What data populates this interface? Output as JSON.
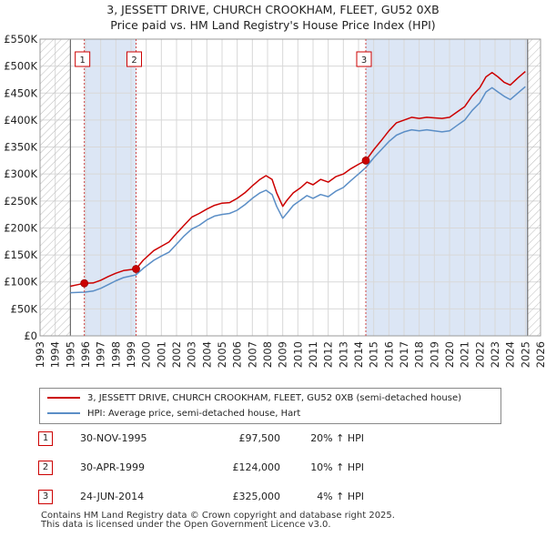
{
  "title_line1": "3, JESSETT DRIVE, CHURCH CROOKHAM, FLEET, GU52 0XB",
  "title_line2": "Price paid vs. HM Land Registry's House Price Index (HPI)",
  "colors": {
    "property": "#cc0000",
    "hpi": "#5b8ec6",
    "sale_band": "#dce6f5",
    "grid": "#d8d8d8",
    "marker_line": "#cc4444"
  },
  "chart_data": {
    "type": "line",
    "x_range": [
      1993,
      2026
    ],
    "ylim": [
      0,
      550000
    ],
    "y_ticks": [
      0,
      50000,
      100000,
      150000,
      200000,
      250000,
      300000,
      350000,
      400000,
      450000,
      500000,
      550000
    ],
    "y_tick_labels": [
      "£0",
      "£50K",
      "£100K",
      "£150K",
      "£200K",
      "£250K",
      "£300K",
      "£350K",
      "£400K",
      "£450K",
      "£500K",
      "£550K"
    ],
    "x_ticks": [
      "1993",
      "1994",
      "1995",
      "1996",
      "1997",
      "1998",
      "1999",
      "2000",
      "2001",
      "2002",
      "2003",
      "2004",
      "2005",
      "2006",
      "2007",
      "2008",
      "2009",
      "2010",
      "2011",
      "2012",
      "2013",
      "2014",
      "2015",
      "2016",
      "2017",
      "2018",
      "2019",
      "2020",
      "2021",
      "2022",
      "2023",
      "2024",
      "2025",
      "2026"
    ],
    "data_range": [
      1995.0,
      2025.15
    ],
    "series": [
      {
        "name": "3, JESSETT DRIVE, CHURCH CROOKHAM, FLEET, GU52 0XB (semi-detached house)",
        "color": "#cc0000",
        "points": [
          [
            1995.0,
            92000
          ],
          [
            1995.5,
            95000
          ],
          [
            1995.92,
            97500
          ],
          [
            1996.5,
            98000
          ],
          [
            1997.0,
            103000
          ],
          [
            1997.5,
            110000
          ],
          [
            1998.0,
            116000
          ],
          [
            1998.5,
            121000
          ],
          [
            1999.33,
            124000
          ],
          [
            1999.8,
            140000
          ],
          [
            2000.5,
            158000
          ],
          [
            2001.0,
            166000
          ],
          [
            2001.5,
            174000
          ],
          [
            2002.0,
            190000
          ],
          [
            2002.5,
            205000
          ],
          [
            2003.0,
            220000
          ],
          [
            2003.5,
            227000
          ],
          [
            2004.0,
            235000
          ],
          [
            2004.5,
            242000
          ],
          [
            2005.0,
            246000
          ],
          [
            2005.5,
            247000
          ],
          [
            2006.0,
            255000
          ],
          [
            2006.5,
            265000
          ],
          [
            2007.0,
            278000
          ],
          [
            2007.5,
            290000
          ],
          [
            2007.9,
            297000
          ],
          [
            2008.3,
            290000
          ],
          [
            2008.6,
            265000
          ],
          [
            2009.0,
            240000
          ],
          [
            2009.3,
            252000
          ],
          [
            2009.7,
            265000
          ],
          [
            2010.2,
            275000
          ],
          [
            2010.6,
            285000
          ],
          [
            2011.0,
            280000
          ],
          [
            2011.5,
            290000
          ],
          [
            2012.0,
            285000
          ],
          [
            2012.5,
            295000
          ],
          [
            2013.0,
            300000
          ],
          [
            2013.5,
            310000
          ],
          [
            2014.0,
            318000
          ],
          [
            2014.48,
            325000
          ],
          [
            2015.0,
            345000
          ],
          [
            2015.5,
            362000
          ],
          [
            2016.0,
            380000
          ],
          [
            2016.5,
            395000
          ],
          [
            2017.0,
            400000
          ],
          [
            2017.5,
            405000
          ],
          [
            2018.0,
            403000
          ],
          [
            2018.5,
            405000
          ],
          [
            2019.0,
            404000
          ],
          [
            2019.5,
            403000
          ],
          [
            2020.0,
            405000
          ],
          [
            2020.5,
            415000
          ],
          [
            2021.0,
            425000
          ],
          [
            2021.5,
            445000
          ],
          [
            2022.0,
            460000
          ],
          [
            2022.4,
            480000
          ],
          [
            2022.8,
            488000
          ],
          [
            2023.2,
            480000
          ],
          [
            2023.6,
            470000
          ],
          [
            2024.0,
            465000
          ],
          [
            2024.5,
            478000
          ],
          [
            2025.0,
            490000
          ]
        ]
      },
      {
        "name": "HPI: Average price, semi-detached house, Hart",
        "color": "#5b8ec6",
        "points": [
          [
            1995.0,
            80000
          ],
          [
            1995.5,
            80500
          ],
          [
            1995.92,
            81000
          ],
          [
            1996.5,
            83000
          ],
          [
            1997.0,
            88000
          ],
          [
            1997.5,
            95000
          ],
          [
            1998.0,
            102000
          ],
          [
            1998.5,
            108000
          ],
          [
            1999.33,
            113000
          ],
          [
            1999.8,
            125000
          ],
          [
            2000.5,
            140000
          ],
          [
            2001.0,
            148000
          ],
          [
            2001.5,
            155000
          ],
          [
            2002.0,
            170000
          ],
          [
            2002.5,
            185000
          ],
          [
            2003.0,
            198000
          ],
          [
            2003.5,
            205000
          ],
          [
            2004.0,
            215000
          ],
          [
            2004.5,
            222000
          ],
          [
            2005.0,
            225000
          ],
          [
            2005.5,
            227000
          ],
          [
            2006.0,
            233000
          ],
          [
            2006.5,
            243000
          ],
          [
            2007.0,
            255000
          ],
          [
            2007.5,
            265000
          ],
          [
            2007.9,
            270000
          ],
          [
            2008.3,
            262000
          ],
          [
            2008.6,
            240000
          ],
          [
            2009.0,
            218000
          ],
          [
            2009.3,
            228000
          ],
          [
            2009.7,
            242000
          ],
          [
            2010.2,
            252000
          ],
          [
            2010.6,
            260000
          ],
          [
            2011.0,
            255000
          ],
          [
            2011.5,
            262000
          ],
          [
            2012.0,
            258000
          ],
          [
            2012.5,
            268000
          ],
          [
            2013.0,
            275000
          ],
          [
            2013.5,
            288000
          ],
          [
            2014.0,
            300000
          ],
          [
            2014.48,
            312000
          ],
          [
            2015.0,
            330000
          ],
          [
            2015.5,
            345000
          ],
          [
            2016.0,
            360000
          ],
          [
            2016.5,
            372000
          ],
          [
            2017.0,
            378000
          ],
          [
            2017.5,
            382000
          ],
          [
            2018.0,
            380000
          ],
          [
            2018.5,
            382000
          ],
          [
            2019.0,
            380000
          ],
          [
            2019.5,
            378000
          ],
          [
            2020.0,
            380000
          ],
          [
            2020.5,
            390000
          ],
          [
            2021.0,
            400000
          ],
          [
            2021.5,
            418000
          ],
          [
            2022.0,
            432000
          ],
          [
            2022.4,
            452000
          ],
          [
            2022.8,
            460000
          ],
          [
            2023.2,
            452000
          ],
          [
            2023.6,
            444000
          ],
          [
            2024.0,
            438000
          ],
          [
            2024.5,
            450000
          ],
          [
            2025.0,
            462000
          ]
        ]
      }
    ],
    "sales": [
      {
        "label": "1",
        "x": 1995.92,
        "value": 97500
      },
      {
        "label": "2",
        "x": 1999.33,
        "value": 124000
      },
      {
        "label": "3",
        "x": 2014.48,
        "value": 325000
      }
    ]
  },
  "legend": {
    "property": "3, JESSETT DRIVE, CHURCH CROOKHAM, FLEET, GU52 0XB (semi-detached house)",
    "hpi": "HPI: Average price, semi-detached house, Hart"
  },
  "sales_table": [
    {
      "num": "1",
      "date": "30-NOV-1995",
      "price": "£97,500",
      "hpi": "20% ↑ HPI"
    },
    {
      "num": "2",
      "date": "30-APR-1999",
      "price": "£124,000",
      "hpi": "10% ↑ HPI"
    },
    {
      "num": "3",
      "date": "24-JUN-2014",
      "price": "£325,000",
      "hpi": "4% ↑ HPI"
    }
  ],
  "footer_line1": "Contains HM Land Registry data © Crown copyright and database right 2025.",
  "footer_line2": "This data is licensed under the Open Government Licence v3.0."
}
